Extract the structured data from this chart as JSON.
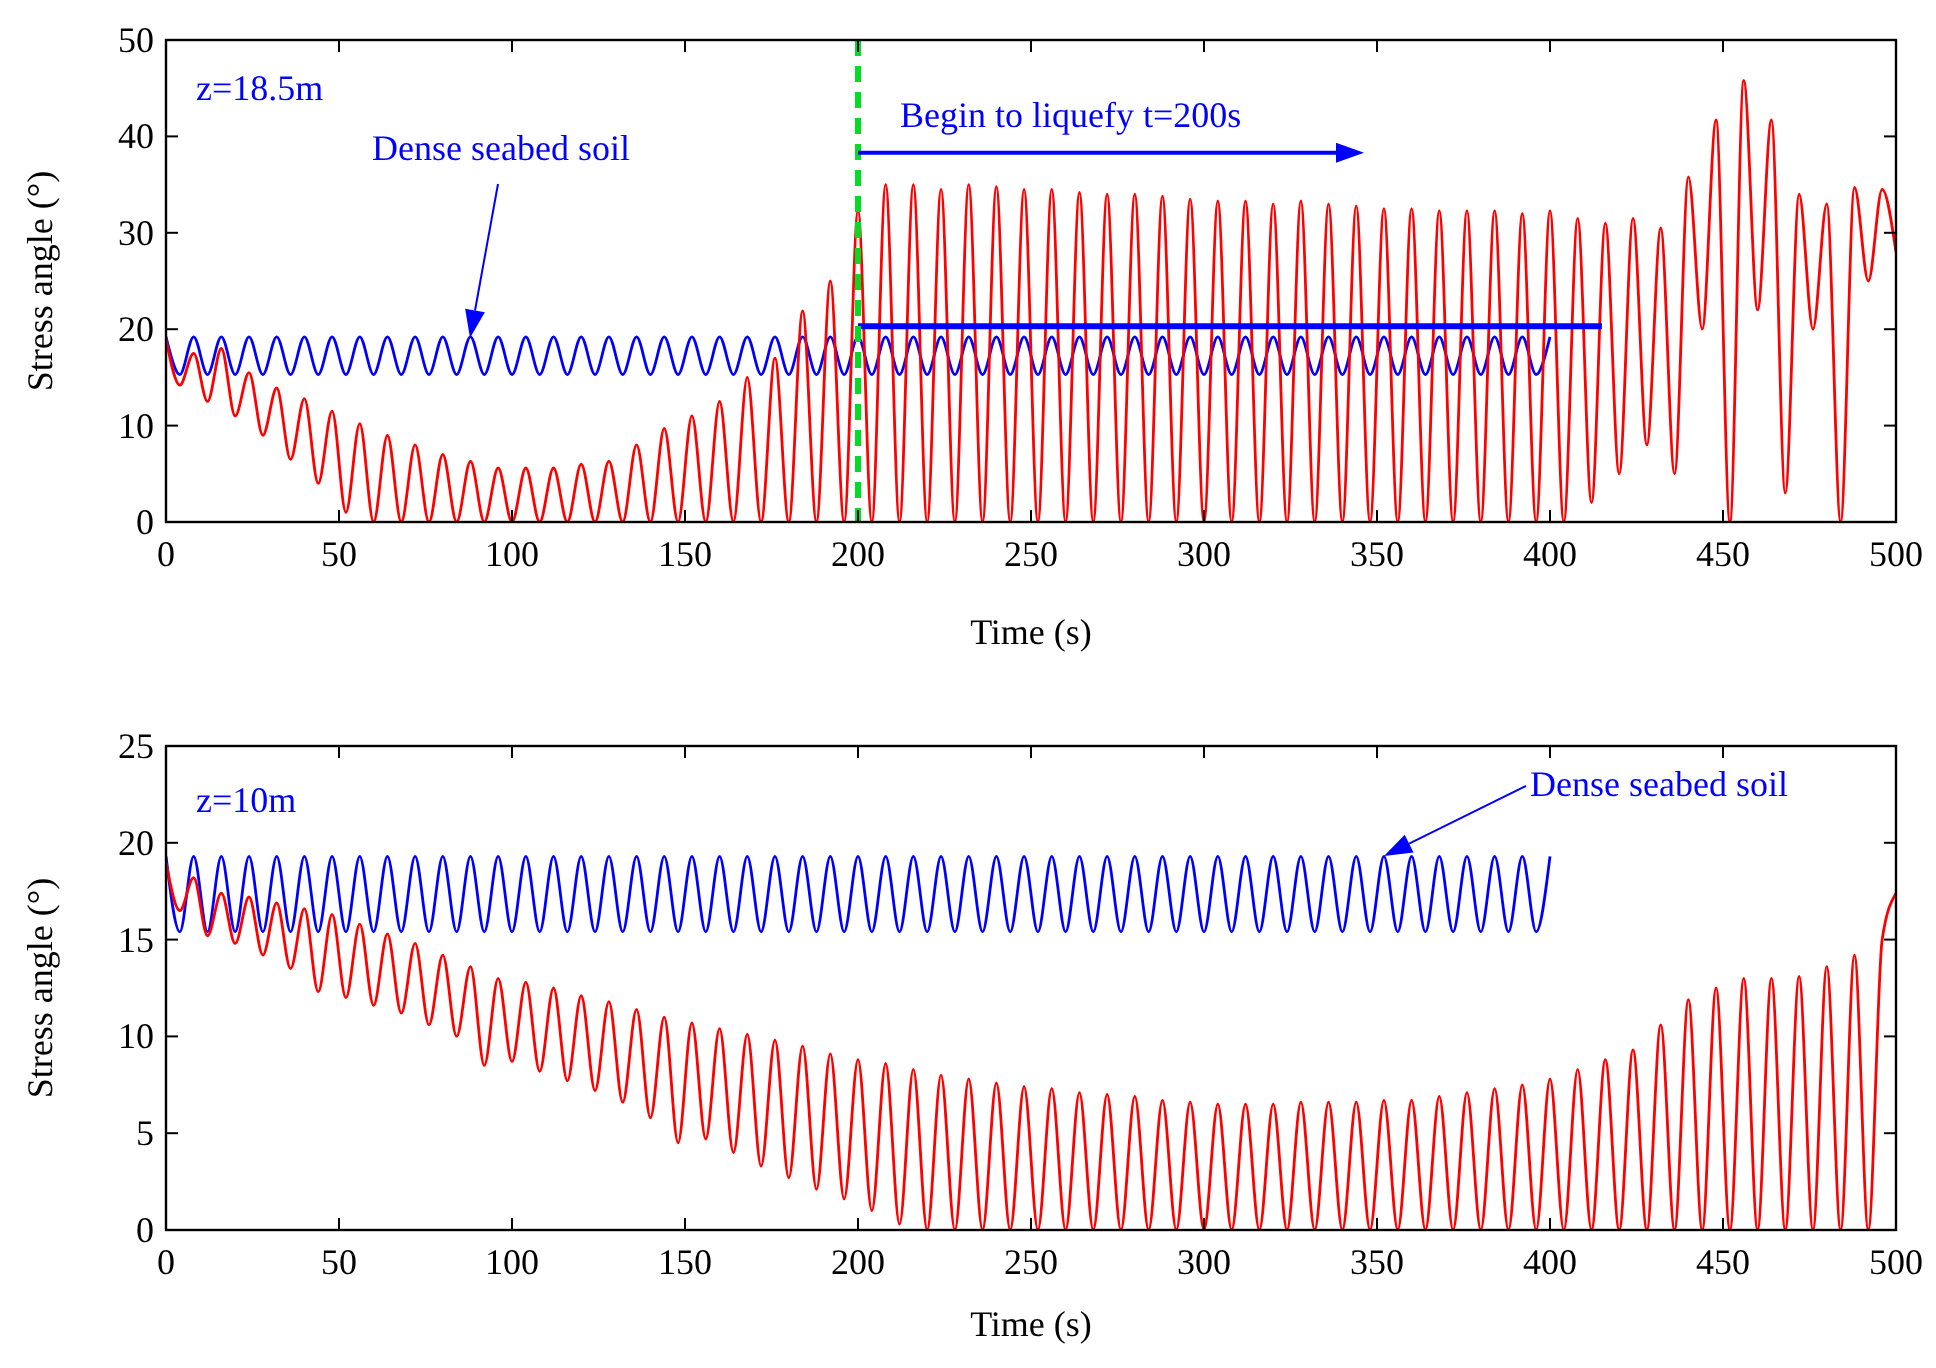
{
  "chart_data": [
    {
      "type": "line",
      "xlabel": "Time (s)",
      "ylabel": "Stress angle (°)",
      "xlim": [
        0,
        500
      ],
      "ylim": [
        0,
        50
      ],
      "xticks": [
        0,
        50,
        100,
        150,
        200,
        250,
        300,
        350,
        400,
        450,
        500
      ],
      "yticks": [
        0,
        10,
        20,
        30,
        40,
        50
      ],
      "grid": false,
      "x": [
        0,
        4,
        8,
        12,
        16,
        20,
        24,
        28,
        32,
        36,
        40,
        44,
        48,
        52,
        56,
        60,
        64,
        68,
        72,
        76,
        80,
        84,
        88,
        92,
        96,
        100,
        104,
        108,
        112,
        116,
        120,
        124,
        128,
        132,
        136,
        140,
        144,
        148,
        152,
        156,
        160,
        164,
        168,
        172,
        176,
        180,
        184,
        188,
        192,
        196,
        200,
        204,
        208,
        212,
        216,
        220,
        224,
        228,
        232,
        236,
        240,
        244,
        248,
        252,
        256,
        260,
        264,
        268,
        272,
        276,
        280,
        284,
        288,
        292,
        296,
        300,
        304,
        308,
        312,
        316,
        320,
        324,
        328,
        332,
        336,
        340,
        344,
        348,
        352,
        356,
        360,
        364,
        368,
        372,
        376,
        380,
        384,
        388,
        392,
        396,
        400,
        404,
        408,
        412,
        416,
        420,
        424,
        428,
        432,
        436,
        440,
        444,
        448,
        452,
        456,
        460,
        464,
        468,
        472,
        476,
        480,
        484,
        488,
        492,
        496,
        500
      ],
      "series": [
        {
          "color": "#0000ff",
          "values": [
            19.2,
            15.3,
            19.2,
            15.3,
            19.2,
            15.3,
            19.2,
            15.3,
            19.2,
            15.3,
            19.2,
            15.3,
            19.2,
            15.3,
            19.2,
            15.3,
            19.2,
            15.3,
            19.2,
            15.3,
            19.2,
            15.3,
            19.2,
            15.3,
            19.2,
            15.3,
            19.2,
            15.3,
            19.2,
            15.3,
            19.2,
            15.3,
            19.2,
            15.3,
            19.2,
            15.3,
            19.2,
            15.3,
            19.2,
            15.3,
            19.2,
            15.3,
            19.2,
            15.3,
            19.2,
            15.3,
            19.2,
            15.3,
            19.2,
            15.3,
            19.2,
            15.3,
            19.2,
            15.3,
            19.2,
            15.3,
            19.2,
            15.3,
            19.2,
            15.3,
            19.2,
            15.3,
            19.2,
            15.3,
            19.2,
            15.3,
            19.2,
            15.3,
            19.2,
            15.3,
            19.2,
            15.3,
            19.2,
            15.3,
            19.2,
            15.3,
            19.2,
            15.3,
            19.2,
            15.3,
            19.2,
            15.3,
            19.2,
            15.3,
            19.2,
            15.3,
            19.2,
            15.3,
            19.2,
            15.3,
            19.2,
            15.3,
            19.2,
            15.3,
            19.2,
            15.3,
            19.2,
            15.3,
            19.2,
            15.3,
            19.2,
            null,
            null,
            null,
            null,
            null,
            null,
            null,
            null,
            null,
            null,
            null,
            null,
            null,
            null,
            null,
            null,
            null,
            null,
            null,
            null,
            null,
            null,
            null,
            null,
            null
          ]
        },
        {
          "color": "#ff0000",
          "values": [
            19,
            14.2,
            17.5,
            12.5,
            18,
            11,
            15.5,
            9,
            13.9,
            6.5,
            12.8,
            4,
            11.5,
            1,
            10.2,
            0,
            9,
            0,
            8,
            0,
            7,
            0,
            6.3,
            0,
            5.6,
            0,
            5.6,
            0,
            5.6,
            0,
            6,
            0,
            6.3,
            0,
            8,
            0,
            9.7,
            0,
            11,
            0,
            12.5,
            0,
            15,
            0,
            17,
            0,
            21.9,
            0,
            25,
            0,
            32.3,
            0,
            35,
            0,
            35,
            0,
            34.5,
            0,
            35,
            0,
            34.8,
            0,
            34.5,
            0,
            34.5,
            0,
            34.2,
            0,
            34,
            0,
            34,
            0,
            33.8,
            0,
            33.5,
            0,
            33.3,
            0,
            33.3,
            0,
            33,
            0,
            33.3,
            0,
            33,
            0,
            32.8,
            0,
            32.5,
            0,
            32.5,
            0,
            32.3,
            0,
            32.3,
            0,
            32.3,
            0,
            32,
            0,
            32.3,
            0,
            31.5,
            2,
            31,
            5,
            31.5,
            8,
            30.5,
            5,
            35.8,
            20,
            41.7,
            0,
            45.8,
            22,
            41.7,
            3,
            34,
            20,
            33,
            0,
            34.7,
            25,
            34.5,
            28
          ]
        },
        {
          "type": "line",
          "color": "#0000ff",
          "x": [
            200,
            415
          ],
          "values": [
            20.3,
            20.3
          ]
        }
      ],
      "ref_lines": [
        {
          "axis": "x",
          "value": 200,
          "color": "#00dd22",
          "line_style": "dashed"
        }
      ],
      "annotations": [
        "z=18.5m",
        "Dense seabed soil",
        {
          "text": "Begin to liquefy t=200s",
          "x": 200,
          "y": 38.3
        }
      ]
    },
    {
      "type": "line",
      "xlabel": "Time (s)",
      "ylabel": "Stress angle (°)",
      "xlim": [
        0,
        500
      ],
      "ylim": [
        0,
        25
      ],
      "xticks": [
        0,
        50,
        100,
        150,
        200,
        250,
        300,
        350,
        400,
        450,
        500
      ],
      "yticks": [
        0,
        5,
        10,
        15,
        20,
        25
      ],
      "grid": false,
      "x": [
        0,
        4,
        8,
        12,
        16,
        20,
        24,
        28,
        32,
        36,
        40,
        44,
        48,
        52,
        56,
        60,
        64,
        68,
        72,
        76,
        80,
        84,
        88,
        92,
        96,
        100,
        104,
        108,
        112,
        116,
        120,
        124,
        128,
        132,
        136,
        140,
        144,
        148,
        152,
        156,
        160,
        164,
        168,
        172,
        176,
        180,
        184,
        188,
        192,
        196,
        200,
        204,
        208,
        212,
        216,
        220,
        224,
        228,
        232,
        236,
        240,
        244,
        248,
        252,
        256,
        260,
        264,
        268,
        272,
        276,
        280,
        284,
        288,
        292,
        296,
        300,
        304,
        308,
        312,
        316,
        320,
        324,
        328,
        332,
        336,
        340,
        344,
        348,
        352,
        356,
        360,
        364,
        368,
        372,
        376,
        380,
        384,
        388,
        392,
        396,
        400,
        404,
        408,
        412,
        416,
        420,
        424,
        428,
        432,
        436,
        440,
        444,
        448,
        452,
        456,
        460,
        464,
        468,
        472,
        476,
        480,
        484,
        488,
        492,
        496,
        500
      ],
      "series": [
        {
          "color": "#0000ff",
          "values": [
            19.3,
            15.4,
            19.3,
            15.4,
            19.3,
            15.4,
            19.3,
            15.4,
            19.3,
            15.4,
            19.3,
            15.4,
            19.3,
            15.4,
            19.3,
            15.4,
            19.3,
            15.4,
            19.3,
            15.4,
            19.3,
            15.4,
            19.3,
            15.4,
            19.3,
            15.4,
            19.3,
            15.4,
            19.3,
            15.4,
            19.3,
            15.4,
            19.3,
            15.4,
            19.3,
            15.4,
            19.3,
            15.4,
            19.3,
            15.4,
            19.3,
            15.4,
            19.3,
            15.4,
            19.3,
            15.4,
            19.3,
            15.4,
            19.3,
            15.4,
            19.3,
            15.4,
            19.3,
            15.4,
            19.3,
            15.4,
            19.3,
            15.4,
            19.3,
            15.4,
            19.3,
            15.4,
            19.3,
            15.4,
            19.3,
            15.4,
            19.3,
            15.4,
            19.3,
            15.4,
            19.3,
            15.4,
            19.3,
            15.4,
            19.3,
            15.4,
            19.3,
            15.4,
            19.3,
            15.4,
            19.3,
            15.4,
            19.3,
            15.4,
            19.3,
            15.4,
            19.3,
            15.4,
            19.3,
            15.4,
            19.3,
            15.4,
            19.3,
            15.4,
            19.3,
            15.4,
            19.3,
            15.4,
            19.3,
            15.4,
            19.3,
            null,
            null,
            null,
            null,
            null,
            null,
            null,
            null,
            null,
            null,
            null,
            null,
            null,
            null,
            null,
            null,
            null,
            null,
            null,
            null,
            null,
            null,
            null,
            null,
            null
          ]
        },
        {
          "color": "#ff0000",
          "values": [
            19,
            16.5,
            18.2,
            15.2,
            17.4,
            14.8,
            17.2,
            14.2,
            16.9,
            13.5,
            16.6,
            12.3,
            16.3,
            12,
            15.8,
            11.6,
            15.3,
            11.2,
            14.8,
            10.6,
            14.2,
            10,
            13.6,
            8.5,
            13,
            8.7,
            12.8,
            8.2,
            12.5,
            7.7,
            12.1,
            7.2,
            11.8,
            6.6,
            11.4,
            5.8,
            11,
            4.5,
            10.7,
            4.7,
            10.4,
            4,
            10.1,
            3.3,
            9.8,
            2.7,
            9.5,
            2.1,
            9.1,
            1.6,
            8.8,
            1,
            8.6,
            0.3,
            8.3,
            0,
            8,
            0,
            7.8,
            0,
            7.6,
            0,
            7.4,
            0,
            7.3,
            0,
            7.1,
            0,
            7,
            0,
            6.9,
            0,
            6.7,
            0,
            6.6,
            0,
            6.5,
            0,
            6.5,
            0,
            6.5,
            0,
            6.6,
            0,
            6.6,
            0,
            6.6,
            0,
            6.7,
            0,
            6.7,
            0,
            6.9,
            0,
            7.1,
            0,
            7.3,
            0,
            7.5,
            0,
            7.8,
            0,
            8.3,
            0,
            8.8,
            0,
            9.3,
            0,
            10.6,
            0,
            11.9,
            0,
            12.5,
            0,
            13,
            0,
            13,
            0,
            13.1,
            0,
            13.6,
            0,
            14.2,
            0,
            15,
            17.4
          ]
        }
      ],
      "annotations": [
        "z=10m",
        "Dense seabed soil"
      ]
    }
  ]
}
